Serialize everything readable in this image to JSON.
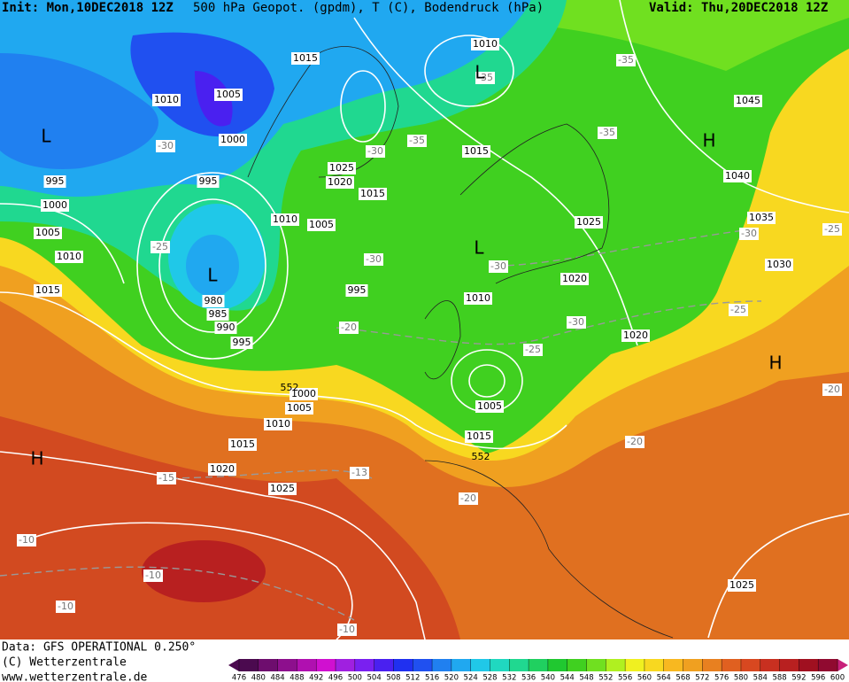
{
  "header": {
    "init": "Init: Mon,10DEC2018 12Z",
    "title": "500 hPa Geopot. (gpdm), T (C), Bodendruck (hPa)",
    "valid": "Valid: Thu,20DEC2018 12Z"
  },
  "footer": {
    "source": "Data: GFS OPERATIONAL 0.250°",
    "copyright": "(C) Wetterzentrale",
    "website": "www.wetterzentrale.de"
  },
  "colorbar": {
    "ticks": [
      476,
      480,
      484,
      488,
      492,
      496,
      500,
      504,
      508,
      512,
      516,
      520,
      524,
      528,
      532,
      536,
      540,
      544,
      548,
      552,
      556,
      560,
      564,
      568,
      572,
      576,
      580,
      584,
      588,
      592,
      596,
      600
    ],
    "colors": [
      "#4b0a4f",
      "#6e0d6e",
      "#8d0f8d",
      "#b010b0",
      "#d010d0",
      "#a020e0",
      "#7a20f0",
      "#4a20f0",
      "#2030f0",
      "#2050f0",
      "#2080f0",
      "#20a8f0",
      "#20c8e8",
      "#20d8c0",
      "#20d890",
      "#20d060",
      "#20c830",
      "#40d020",
      "#70e020",
      "#b0f020",
      "#f0f020",
      "#f8d820",
      "#f8b820",
      "#f0a020",
      "#e88020",
      "#e06020",
      "#d84820",
      "#c83020",
      "#b82020",
      "#a01020",
      "#900a30"
    ]
  },
  "isobar_labels": [
    1015,
    1010,
    1010,
    1005,
    1000,
    995,
    995,
    1025,
    1020,
    1015,
    1015,
    1045,
    1040,
    1035,
    1030,
    1025,
    1020,
    1020,
    1010,
    995,
    1000,
    1005,
    1010,
    1015,
    1010,
    1005,
    980,
    985,
    990,
    995,
    1000,
    1005,
    1010,
    1015,
    1020,
    1025,
    1005,
    1015,
    1025
  ],
  "temperature_labels": [
    -35,
    -35,
    -35,
    -35,
    -30,
    -30,
    -30,
    -30,
    -30,
    -30,
    -25,
    -25,
    -25,
    -25,
    -20,
    -20,
    -20,
    -20,
    -15,
    -13,
    -10,
    -10,
    -10,
    -10
  ],
  "height_labels": [
    552,
    552
  ],
  "pressure_centers": [
    "L",
    "L",
    "L",
    "L",
    "H",
    "H",
    "H"
  ]
}
